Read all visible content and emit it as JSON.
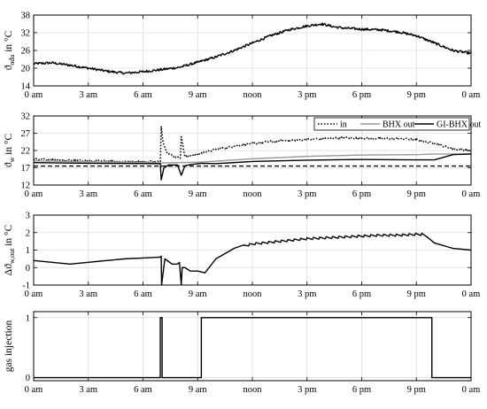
{
  "chart_data": [
    {
      "type": "line",
      "ylabel": "ϑ_odu in °C",
      "ylabel_main": "ϑ",
      "ylabel_sub": "odu",
      "ylabel_unit": " in °C",
      "xlim": [
        0,
        24
      ],
      "ylim": [
        14,
        38
      ],
      "yticks": [
        14,
        20,
        26,
        32,
        38
      ],
      "xticks": [
        0,
        3,
        6,
        9,
        12,
        15,
        18,
        21,
        24
      ],
      "xtick_labels": [
        "0 am",
        "3 am",
        "6 am",
        "9 am",
        "noon",
        "3 pm",
        "6 pm",
        "9 pm",
        "0 am"
      ],
      "grid": true,
      "series": [
        {
          "color": "#000000",
          "style": "solid",
          "noise": 0.4,
          "x": [
            0,
            1,
            2,
            3,
            4,
            5,
            6,
            7,
            8,
            9,
            10,
            11,
            12,
            13,
            14,
            15,
            15.8,
            16.5,
            17,
            18,
            19,
            20,
            21,
            22,
            23,
            24
          ],
          "y": [
            21.5,
            21.8,
            21.0,
            20.0,
            19.0,
            18.3,
            18.8,
            19.5,
            20.3,
            22.0,
            23.8,
            26.0,
            28.5,
            31.0,
            33.0,
            34.3,
            35.0,
            34.0,
            33.6,
            33.2,
            33.0,
            32.3,
            31.0,
            28.5,
            26.0,
            25.0
          ]
        }
      ]
    },
    {
      "type": "line",
      "ylabel": "ϑ_w in °C",
      "ylabel_main": "ϑ",
      "ylabel_sub": "w",
      "ylabel_unit": " in °C",
      "xlim": [
        0,
        24
      ],
      "ylim": [
        12,
        32
      ],
      "yticks": [
        12,
        17,
        22,
        27,
        32
      ],
      "xticks": [
        0,
        3,
        6,
        9,
        12,
        15,
        18,
        21,
        24
      ],
      "xtick_labels": [
        "0 am",
        "3 am",
        "6 am",
        "9 am",
        "noon",
        "3 pm",
        "6 pm",
        "9 pm",
        "0 am"
      ],
      "grid": true,
      "legend_position": "top-right",
      "reference_line": {
        "y": 17.5,
        "style": "dashed",
        "color": "#000000"
      },
      "series": [
        {
          "name": "in",
          "color": "#000000",
          "style": "dotted",
          "noise": 0.25,
          "x": [
            0,
            1,
            3,
            6,
            6.95,
            7.0,
            7.1,
            7.3,
            7.6,
            7.9,
            8.05,
            8.1,
            8.3,
            8.6,
            9,
            10,
            11,
            12,
            13,
            14,
            15,
            16,
            17,
            18,
            19,
            20,
            21,
            22,
            23,
            24
          ],
          "y": [
            19.5,
            19.3,
            19.0,
            18.8,
            18.8,
            29.0,
            24.5,
            21.5,
            20.5,
            20.0,
            20.0,
            26.0,
            20.2,
            20.5,
            21.0,
            22.3,
            23.2,
            24.0,
            24.6,
            24.9,
            25.2,
            25.5,
            25.7,
            25.6,
            25.5,
            25.4,
            25.2,
            24.0,
            22.5,
            22.0
          ]
        },
        {
          "name": "BHX out",
          "color": "#999999",
          "style": "solid",
          "noise": 0,
          "x": [
            0,
            3,
            6,
            7,
            9,
            10,
            12,
            15,
            18,
            21,
            22,
            24
          ],
          "y": [
            19.0,
            18.7,
            18.5,
            18.4,
            18.6,
            18.9,
            19.6,
            20.3,
            20.7,
            20.8,
            21.0,
            21.0
          ],
          "samples": 300
        },
        {
          "name": "GI-BHX out",
          "color": "#000000",
          "style": "solid",
          "noise": 0,
          "x": [
            0,
            3,
            6.5,
            6.95,
            7.0,
            7.15,
            7.4,
            7.9,
            8.1,
            8.3,
            8.6,
            9.2,
            10,
            12,
            15,
            18,
            21,
            22,
            23,
            24
          ],
          "y": [
            18.5,
            18.3,
            18.2,
            18.2,
            13.5,
            17.0,
            17.8,
            17.8,
            14.8,
            17.6,
            17.9,
            18.3,
            18.2,
            18.8,
            19.2,
            19.4,
            19.3,
            19.3,
            20.8,
            21.0
          ],
          "samples": 0
        }
      ]
    },
    {
      "type": "line",
      "ylabel": "Δϑ_w,out in °C",
      "ylabel_main": "Δϑ",
      "ylabel_sub": "w,out",
      "ylabel_unit": " in °C",
      "xlim": [
        0,
        24
      ],
      "ylim": [
        -1,
        3
      ],
      "yticks": [
        -1,
        0,
        1,
        2,
        3
      ],
      "xticks": [
        0,
        3,
        6,
        9,
        12,
        15,
        18,
        21,
        24
      ],
      "xtick_labels": [
        "0 am",
        "3 am",
        "6 am",
        "9 am",
        "noon",
        "3 pm",
        "6 pm",
        "9 pm",
        "0 am"
      ],
      "grid": true,
      "series": [
        {
          "color": "#000000",
          "style": "solid",
          "noise": 0,
          "sawtooth": {
            "from": 11.5,
            "to": 21.6,
            "period": 0.35,
            "amp": 0.06
          },
          "x": [
            0,
            1,
            2,
            3,
            4,
            5,
            6,
            6.95,
            7.0,
            7.02,
            7.2,
            7.6,
            7.9,
            8.0,
            8.1,
            8.15,
            8.3,
            8.6,
            9.0,
            9.4,
            10,
            11,
            12,
            13,
            14,
            15,
            16,
            17,
            18,
            19,
            20,
            21,
            21.5,
            22,
            23,
            24
          ],
          "y": [
            0.4,
            0.3,
            0.2,
            0.3,
            0.4,
            0.5,
            0.55,
            0.6,
            0.65,
            -1.0,
            0.5,
            0.2,
            0.2,
            0.3,
            -1.0,
            0.0,
            0.0,
            -0.2,
            -0.2,
            -0.3,
            0.5,
            1.1,
            1.35,
            1.45,
            1.55,
            1.65,
            1.7,
            1.75,
            1.8,
            1.85,
            1.85,
            1.9,
            1.9,
            1.4,
            1.1,
            1.0
          ]
        }
      ]
    },
    {
      "type": "line",
      "ylabel": "gas injection",
      "xlim": [
        0,
        24
      ],
      "ylim": [
        -0.05,
        1.1
      ],
      "yticks": [
        0,
        1
      ],
      "xticks": [
        0,
        3,
        6,
        9,
        12,
        15,
        18,
        21,
        24
      ],
      "xtick_labels": [
        "0 am",
        "3 am",
        "6 am",
        "9 am",
        "noon",
        "3 pm",
        "6 pm",
        "9 pm",
        "0 am"
      ],
      "grid": true,
      "series": [
        {
          "color": "#000000",
          "style": "solid",
          "noise": 0,
          "x": [
            0,
            6.95,
            6.95,
            7.05,
            7.05,
            9.2,
            9.2,
            21.85,
            21.85,
            24
          ],
          "y": [
            0,
            0,
            1,
            1,
            0,
            0,
            1,
            1,
            0,
            0
          ]
        }
      ]
    }
  ]
}
